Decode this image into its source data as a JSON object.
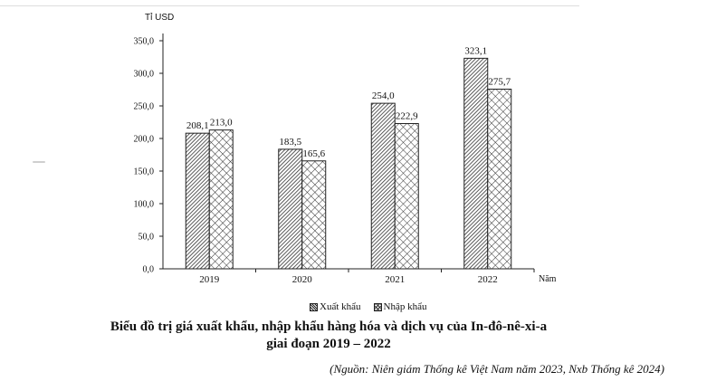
{
  "chart_data": {
    "type": "bar",
    "categories": [
      "2019",
      "2020",
      "2021",
      "2022"
    ],
    "series": [
      {
        "name": "Xuất khẩu",
        "values": [
          208.1,
          183.5,
          254.0,
          323.1
        ],
        "value_labels": [
          "208,1",
          "183,5",
          "254,0",
          "323,1"
        ],
        "pattern": "diagonal-hatch-dense"
      },
      {
        "name": "Nhập khẩu",
        "values": [
          213.0,
          165.6,
          222.9,
          275.7
        ],
        "value_labels": [
          "213,0",
          "165,6",
          "222,9",
          "275,7"
        ],
        "pattern": "crosshatch"
      }
    ],
    "ylabel": "Tỉ USD",
    "xlabel": "Năm",
    "ylim": [
      0,
      350
    ],
    "yticks": [
      0,
      50,
      100,
      150,
      200,
      250,
      300,
      350
    ],
    "ytick_labels": [
      "0,0",
      "50,0",
      "100,0",
      "150,0",
      "200,0",
      "250,0",
      "300,0",
      "350,0"
    ],
    "grid": false,
    "legend_position": "bottom",
    "title_line1": "Biểu đồ trị giá xuất khẩu, nhập khẩu hàng hóa và dịch vụ của In-đô-nê-xi-a",
    "title_line2": "giai đoạn 2019 – 2022",
    "source": "(Nguồn: Niên giám Thống kê Việt Nam năm 2023, Nxb Thống kê 2024)"
  }
}
